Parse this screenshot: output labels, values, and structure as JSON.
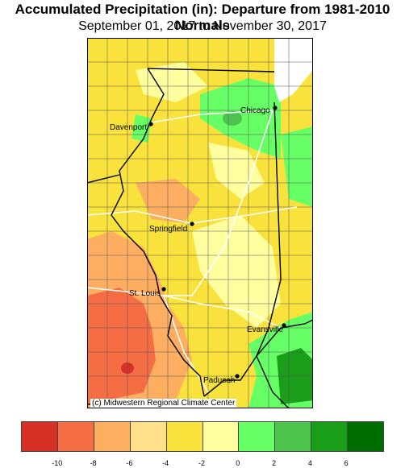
{
  "header": {
    "title": "Accumulated Precipitation (in): Departure from 1981-2010 Normals",
    "subtitle": "September 01, 2017 to November 30, 2017"
  },
  "map": {
    "credit": "(c) Midwestern Regional Climate Center",
    "cities": [
      {
        "name": "Chicago"
      },
      {
        "name": "Davenport"
      },
      {
        "name": "Springfield"
      },
      {
        "name": "St. Louis"
      },
      {
        "name": "Evansville"
      },
      {
        "name": "Paducah"
      }
    ]
  },
  "legend": {
    "colors": [
      "#d73027",
      "#f46d43",
      "#fdae61",
      "#fee08b",
      "#f9e23c",
      "#ffffa0",
      "#66ff66",
      "#4cc44c",
      "#1a9e1a",
      "#006d00"
    ],
    "ticks": [
      "-10",
      "-8",
      "-6",
      "-4",
      "-2",
      "0",
      "2",
      "4",
      "6"
    ]
  },
  "colors": {
    "state_line": "#000000",
    "county_line": "#555555",
    "road": "#ffffff",
    "lake": "#ffffff"
  }
}
